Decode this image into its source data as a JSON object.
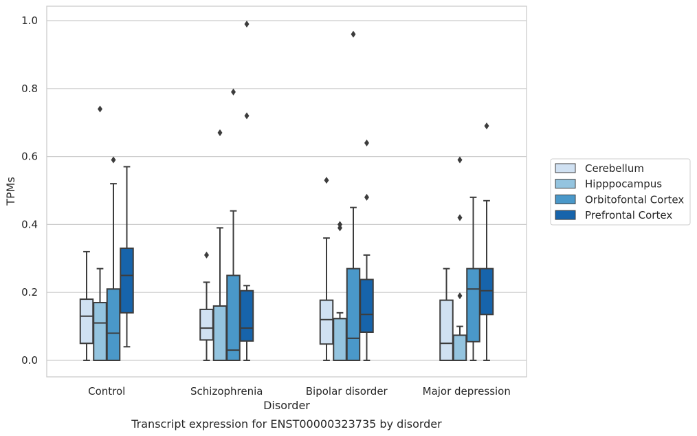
{
  "chart_data": {
    "type": "boxplot",
    "xlabel": "Disorder",
    "ylabel": "TPMs",
    "caption": "Transcript expression for ENST00000323735 by disorder",
    "ylim": [
      -0.05,
      1.04
    ],
    "yticks": [
      0.0,
      0.2,
      0.4,
      0.6,
      0.8,
      1.0
    ],
    "ytick_labels": [
      "0.0",
      "0.2",
      "0.4",
      "0.6",
      "0.8",
      "1.0"
    ],
    "grid": true,
    "legend_position": "right",
    "categories": [
      "Control",
      "Schizophrenia",
      "Bipolar disorder",
      "Major depression"
    ],
    "series": [
      {
        "name": "Cerebellum",
        "color": "#d0e1f2",
        "boxes": [
          {
            "whisker_low": 0.0,
            "q1": 0.05,
            "median": 0.13,
            "q3": 0.18,
            "whisker_high": 0.32,
            "outliers": []
          },
          {
            "whisker_low": 0.0,
            "q1": 0.06,
            "median": 0.095,
            "q3": 0.15,
            "whisker_high": 0.23,
            "outliers": [
              0.31
            ]
          },
          {
            "whisker_low": 0.0,
            "q1": 0.048,
            "median": 0.12,
            "q3": 0.177,
            "whisker_high": 0.36,
            "outliers": [
              0.53
            ]
          },
          {
            "whisker_low": 0.0,
            "q1": 0.0,
            "median": 0.05,
            "q3": 0.177,
            "whisker_high": 0.27,
            "outliers": []
          }
        ]
      },
      {
        "name": "Hipppocampus",
        "color": "#94c4df",
        "boxes": [
          {
            "whisker_low": 0.0,
            "q1": 0.0,
            "median": 0.11,
            "q3": 0.17,
            "whisker_high": 0.27,
            "outliers": [
              0.74
            ]
          },
          {
            "whisker_low": 0.0,
            "q1": 0.0,
            "median": 0.16,
            "q3": 0.16,
            "whisker_high": 0.39,
            "outliers": [
              0.67
            ]
          },
          {
            "whisker_low": 0.0,
            "q1": 0.0,
            "median": 0.123,
            "q3": 0.123,
            "whisker_high": 0.14,
            "outliers": [
              0.39,
              0.4
            ]
          },
          {
            "whisker_low": 0.0,
            "q1": 0.0,
            "median": 0.074,
            "q3": 0.074,
            "whisker_high": 0.1,
            "outliers": [
              0.19,
              0.42,
              0.59
            ]
          }
        ]
      },
      {
        "name": "Orbitofontal Cortex",
        "color": "#4a98c9",
        "boxes": [
          {
            "whisker_low": 0.0,
            "q1": 0.0,
            "median": 0.08,
            "q3": 0.21,
            "whisker_high": 0.52,
            "outliers": [
              0.59
            ]
          },
          {
            "whisker_low": 0.0,
            "q1": 0.0,
            "median": 0.03,
            "q3": 0.25,
            "whisker_high": 0.44,
            "outliers": [
              0.79
            ]
          },
          {
            "whisker_low": 0.0,
            "q1": 0.0,
            "median": 0.065,
            "q3": 0.27,
            "whisker_high": 0.45,
            "outliers": [
              0.96
            ]
          },
          {
            "whisker_low": 0.0,
            "q1": 0.055,
            "median": 0.21,
            "q3": 0.27,
            "whisker_high": 0.48,
            "outliers": []
          }
        ]
      },
      {
        "name": "Prefrontal Cortex",
        "color": "#1764ab",
        "boxes": [
          {
            "whisker_low": 0.04,
            "q1": 0.14,
            "median": 0.25,
            "q3": 0.33,
            "whisker_high": 0.57,
            "outliers": []
          },
          {
            "whisker_low": 0.0,
            "q1": 0.057,
            "median": 0.095,
            "q3": 0.205,
            "whisker_high": 0.22,
            "outliers": [
              0.72,
              0.99
            ]
          },
          {
            "whisker_low": 0.0,
            "q1": 0.083,
            "median": 0.135,
            "q3": 0.238,
            "whisker_high": 0.31,
            "outliers": [
              0.48,
              0.64
            ]
          },
          {
            "whisker_low": 0.0,
            "q1": 0.135,
            "median": 0.205,
            "q3": 0.27,
            "whisker_high": 0.47,
            "outliers": [
              0.69
            ]
          }
        ]
      }
    ]
  }
}
